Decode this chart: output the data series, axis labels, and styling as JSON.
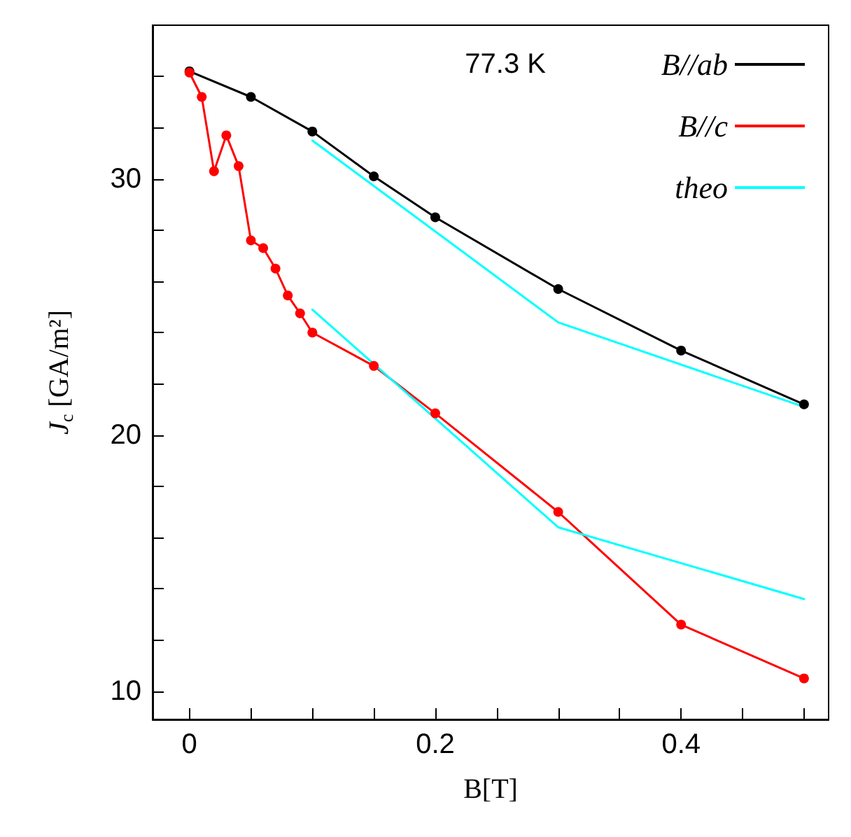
{
  "chart_data": {
    "type": "line",
    "xlabel": "B[T]",
    "ylabel": "J$_{c}$ [GA/m²]",
    "annotations": [
      "77.3 K"
    ],
    "xlim": [
      -0.03,
      0.52
    ],
    "ylim": [
      8.9,
      36
    ],
    "xticks": [
      0,
      {
        "value": 0.05,
        "label": null
      },
      {
        "value": 0.1,
        "label": null
      },
      {
        "value": 0.15,
        "label": null
      },
      0.2,
      {
        "value": 0.25,
        "label": null
      },
      {
        "value": 0.3,
        "label": null
      },
      {
        "value": 0.35,
        "label": null
      },
      0.4,
      {
        "value": 0.45,
        "label": null
      },
      {
        "value": 0.5,
        "label": null
      }
    ],
    "yticks": [
      10,
      {
        "value": 12,
        "label": null
      },
      {
        "value": 14,
        "label": null
      },
      {
        "value": 16,
        "label": null
      },
      {
        "value": 18,
        "label": null
      },
      20,
      {
        "value": 22,
        "label": null
      },
      {
        "value": 24,
        "label": null
      },
      {
        "value": 26,
        "label": null
      },
      {
        "value": 28,
        "label": null
      },
      30,
      {
        "value": 32,
        "label": null
      },
      {
        "value": 34,
        "label": null
      }
    ],
    "grid": false,
    "legend": "top right",
    "series": [
      {
        "name": "B//ab",
        "color": "#000000",
        "marker": "circle",
        "x": [
          0,
          0.05,
          0.1,
          0.15,
          0.2,
          0.3,
          0.4,
          0.5
        ],
        "values": [
          34.2,
          33.2,
          31.85,
          30.1,
          28.5,
          25.7,
          23.3,
          21.2
        ]
      },
      {
        "name": "B//c",
        "color": "#ff0000",
        "marker": "circle",
        "x": [
          0,
          0.01,
          0.02,
          0.03,
          0.04,
          0.05,
          0.06,
          0.07,
          0.08,
          0.09,
          0.1,
          0.15,
          0.2,
          0.3,
          0.4,
          0.5
        ],
        "values": [
          34.15,
          33.2,
          30.3,
          31.7,
          30.5,
          27.6,
          27.3,
          26.5,
          25.45,
          24.75,
          24.0,
          22.7,
          20.85,
          17.0,
          12.6,
          10.5
        ]
      },
      {
        "name": "theo",
        "color": "#00ffff",
        "marker": "none",
        "x": [
          0.1,
          0.3,
          0.5
        ],
        "values": [
          31.5,
          24.4,
          21.1
        ]
      },
      {
        "color": "#00ffff",
        "marker": "none",
        "x": [
          0.1,
          0.3,
          0.5
        ],
        "values": [
          24.9,
          16.4,
          13.6
        ]
      }
    ]
  }
}
